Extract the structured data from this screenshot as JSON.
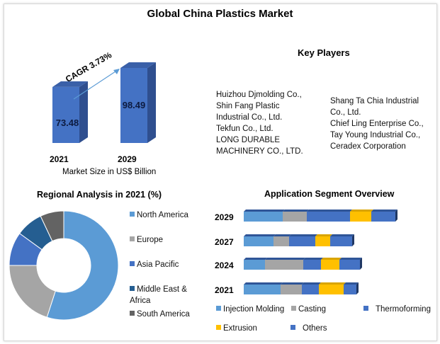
{
  "title": "Global China Plastics Market",
  "market_size": {
    "caption": "Market Size in US$ Billion",
    "cagr_label": "CAGR 3.73%",
    "bars": [
      {
        "year": "2021",
        "value": 73.48,
        "label": "73.48"
      },
      {
        "year": "2029",
        "value": 98.49,
        "label": "98.49"
      }
    ]
  },
  "key_players": {
    "heading": "Key Players",
    "left": [
      "Huizhou Djmolding Co.,",
      "Shin Fang Plastic",
      "Industrial Co., Ltd.",
      "Tekfun Co., Ltd.",
      "LONG DURABLE",
      "MACHINERY CO., LTD."
    ],
    "right": [
      "Shang Ta Chia Industrial",
      "Co., Ltd.",
      "Chief Ling Enterprise Co.,",
      "Tay Young Industrial Co.,",
      "Ceradex Corporation"
    ]
  },
  "chart_data": [
    {
      "type": "bar",
      "title": "",
      "categories": [
        "2021",
        "2029"
      ],
      "values": [
        73.48,
        98.49
      ],
      "xlabel": "Market Size in US$ Billion",
      "annotation": "CAGR 3.73%"
    },
    {
      "type": "pie",
      "title": "Regional Analysis in 2021 (%)",
      "legend_position": "right",
      "slices": [
        {
          "name": "North America",
          "value": 55,
          "color": "#5b9bd5"
        },
        {
          "name": "Europe",
          "value": 20,
          "color": "#a5a5a5"
        },
        {
          "name": "Asia Pacific",
          "value": 10,
          "color": "#4472c4"
        },
        {
          "name": "Middle East & Africa",
          "value": 8,
          "color": "#255e91"
        },
        {
          "name": "South America",
          "value": 7,
          "color": "#636363"
        }
      ]
    },
    {
      "type": "bar",
      "orientation": "horizontal-stacked",
      "title": "Application Segment Overview",
      "legend_position": "bottom",
      "categories": [
        "2029",
        "2027",
        "2024",
        "2021"
      ],
      "series": [
        {
          "name": "Injection Molding",
          "color": "#5b9bd5",
          "values": [
            55,
            42,
            30,
            52
          ]
        },
        {
          "name": "Casting",
          "color": "#a5a5a5",
          "values": [
            34,
            22,
            54,
            30
          ]
        },
        {
          "name": "Thermoforming",
          "color": "#4472c4",
          "values": [
            61,
            37,
            25,
            24
          ]
        },
        {
          "name": "Extrusion",
          "color": "#ffc000",
          "values": [
            30,
            21,
            26,
            35
          ]
        },
        {
          "name": "Others",
          "color": "#4472c4",
          "values": [
            34,
            31,
            29,
            18
          ]
        }
      ]
    }
  ]
}
